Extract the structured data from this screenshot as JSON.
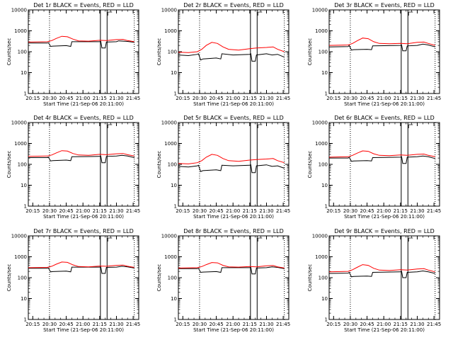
{
  "chart_data": [
    {
      "type": "line",
      "title": "Det 1r BLACK = Events, RED = LLD",
      "xlabel": "Start Time (21-Sep-06 20:11:00)",
      "ylabel": "Counts/sec",
      "yscale": "log",
      "ylim": [
        1,
        10000
      ],
      "xlim": [
        "20:11",
        "21:50"
      ],
      "xticks": [
        "20:15",
        "20:30",
        "20:45",
        "21:00",
        "21:15",
        "21:30",
        "21:45"
      ],
      "yticks": [
        "1",
        "10",
        "100",
        "1000",
        "10000"
      ],
      "events_level": "low",
      "series": [
        {
          "color": "#000000",
          "x": [
            "20:11",
            "20:28",
            "20:29",
            "20:31",
            "20:33",
            "20:45",
            "20:49",
            "20:50",
            "21:15",
            "21:16",
            "21:17",
            "21:20",
            "21:21",
            "21:30",
            "21:32",
            "21:40",
            "21:46"
          ],
          "values": [
            260,
            260,
            270,
            180,
            185,
            195,
            180,
            300,
            300,
            310,
            150,
            150,
            290,
            300,
            330,
            310,
            280
          ]
        },
        {
          "color": "#ff0000",
          "x": [
            "20:11",
            "20:28",
            "20:32",
            "20:36",
            "20:41",
            "20:46",
            "20:51",
            "20:56",
            "21:05",
            "21:15",
            "21:21",
            "21:30",
            "21:36",
            "21:40",
            "21:46"
          ],
          "values": [
            290,
            300,
            340,
            430,
            550,
            520,
            400,
            330,
            320,
            350,
            340,
            380,
            390,
            340,
            300
          ]
        }
      ]
    },
    {
      "type": "line",
      "title": "Det 2r BLACK = Events, RED = LLD",
      "xlabel": "Start Time (21-Sep-06 20:11:00)",
      "ylabel": "Counts/sec",
      "yscale": "log",
      "ylim": [
        1,
        10000
      ],
      "xlim": [
        "20:11",
        "21:50"
      ],
      "xticks": [
        "20:15",
        "20:30",
        "20:45",
        "21:00",
        "21:15",
        "21:30",
        "21:45"
      ],
      "yticks": [
        "1",
        "10",
        "100",
        "1000",
        "10000"
      ],
      "events_level": "mid",
      "series": [
        {
          "color": "#000000",
          "x": [
            "20:11",
            "20:20",
            "20:28",
            "20:29",
            "20:31",
            "20:33",
            "20:45",
            "20:49",
            "20:50",
            "21:00",
            "21:15",
            "21:16",
            "21:17",
            "21:20",
            "21:21",
            "21:30",
            "21:35",
            "21:40",
            "21:46"
          ],
          "values": [
            70,
            65,
            75,
            80,
            40,
            45,
            50,
            45,
            80,
            70,
            75,
            80,
            35,
            35,
            70,
            80,
            70,
            75,
            55
          ]
        },
        {
          "color": "#ff0000",
          "x": [
            "20:11",
            "20:20",
            "20:28",
            "20:32",
            "20:36",
            "20:41",
            "20:46",
            "20:51",
            "20:56",
            "21:05",
            "21:15",
            "21:21",
            "21:30",
            "21:36",
            "21:40",
            "21:46"
          ],
          "values": [
            95,
            90,
            100,
            130,
            200,
            280,
            250,
            170,
            130,
            120,
            140,
            150,
            160,
            170,
            130,
            100
          ]
        }
      ]
    },
    {
      "type": "line",
      "title": "Det 3r BLACK = Events, RED = LLD",
      "xlabel": "Start Time (21-Sep-06 20:11:00)",
      "ylabel": "Counts/sec",
      "yscale": "log",
      "ylim": [
        1,
        10000
      ],
      "xlim": [
        "20:11",
        "21:50"
      ],
      "xticks": [
        "20:15",
        "20:30",
        "20:45",
        "21:00",
        "21:15",
        "21:30",
        "21:45"
      ],
      "yticks": [
        "1",
        "10",
        "100",
        "1000",
        "10000"
      ],
      "events_level": "high",
      "series": [
        {
          "color": "#000000",
          "x": [
            "20:11",
            "20:28",
            "20:29",
            "20:31",
            "20:33",
            "20:45",
            "20:49",
            "20:50",
            "21:15",
            "21:16",
            "21:17",
            "21:20",
            "21:21",
            "21:30",
            "21:35",
            "21:40",
            "21:46"
          ],
          "values": [
            170,
            175,
            200,
            120,
            125,
            130,
            125,
            190,
            200,
            210,
            110,
            110,
            190,
            200,
            230,
            210,
            170
          ]
        },
        {
          "color": "#ff0000",
          "x": [
            "20:11",
            "20:28",
            "20:32",
            "20:36",
            "20:41",
            "20:46",
            "20:51",
            "20:56",
            "21:05",
            "21:15",
            "21:21",
            "21:30",
            "21:36",
            "21:40",
            "21:46"
          ],
          "values": [
            200,
            210,
            250,
            330,
            450,
            420,
            300,
            250,
            240,
            250,
            240,
            280,
            290,
            250,
            200
          ]
        }
      ]
    },
    {
      "type": "line",
      "title": "Det 4r BLACK = Events, RED = LLD",
      "xlabel": "Start Time (21-Sep-06 20:11:00)",
      "ylabel": "Counts/sec",
      "yscale": "log",
      "ylim": [
        1,
        10000
      ],
      "xlim": [
        "20:11",
        "21:50"
      ],
      "xticks": [
        "20:15",
        "20:30",
        "20:45",
        "21:00",
        "21:15",
        "21:30",
        "21:45"
      ],
      "yticks": [
        "1",
        "10",
        "100",
        "1000",
        "10000"
      ],
      "events_level": "low",
      "series": [
        {
          "color": "#000000",
          "x": [
            "20:11",
            "20:28",
            "20:29",
            "20:31",
            "20:33",
            "20:45",
            "20:49",
            "20:50",
            "21:15",
            "21:16",
            "21:17",
            "21:20",
            "21:21",
            "21:30",
            "21:35",
            "21:40",
            "21:46"
          ],
          "values": [
            210,
            210,
            220,
            145,
            150,
            160,
            150,
            230,
            240,
            250,
            120,
            120,
            240,
            250,
            270,
            250,
            210
          ]
        },
        {
          "color": "#ff0000",
          "x": [
            "20:11",
            "20:28",
            "20:32",
            "20:36",
            "20:41",
            "20:46",
            "20:51",
            "20:56",
            "21:05",
            "21:15",
            "21:21",
            "21:30",
            "21:36",
            "21:40",
            "21:46"
          ],
          "values": [
            240,
            250,
            280,
            350,
            450,
            430,
            330,
            280,
            270,
            300,
            290,
            320,
            330,
            290,
            250
          ]
        }
      ]
    },
    {
      "type": "line",
      "title": "Det 5r BLACK = Events, RED = LLD",
      "xlabel": "Start Time (21-Sep-06 20:11:00)",
      "ylabel": "Counts/sec",
      "yscale": "log",
      "ylim": [
        1,
        10000
      ],
      "xlim": [
        "20:11",
        "21:50"
      ],
      "xticks": [
        "20:15",
        "20:30",
        "20:45",
        "21:00",
        "21:15",
        "21:30",
        "21:45"
      ],
      "yticks": [
        "1",
        "10",
        "100",
        "1000",
        "10000"
      ],
      "events_level": "mid",
      "series": [
        {
          "color": "#000000",
          "x": [
            "20:11",
            "20:20",
            "20:28",
            "20:29",
            "20:31",
            "20:33",
            "20:45",
            "20:49",
            "20:50",
            "21:00",
            "21:15",
            "21:16",
            "21:17",
            "21:20",
            "21:21",
            "21:30",
            "21:35",
            "21:40",
            "21:46"
          ],
          "values": [
            80,
            75,
            85,
            90,
            45,
            50,
            55,
            50,
            90,
            85,
            90,
            95,
            40,
            40,
            85,
            95,
            80,
            85,
            65
          ]
        },
        {
          "color": "#ff0000",
          "x": [
            "20:11",
            "20:20",
            "20:28",
            "20:32",
            "20:36",
            "20:41",
            "20:46",
            "20:51",
            "20:56",
            "21:05",
            "21:15",
            "21:21",
            "21:30",
            "21:36",
            "21:40",
            "21:46"
          ],
          "values": [
            110,
            105,
            120,
            150,
            220,
            300,
            270,
            190,
            150,
            140,
            160,
            170,
            180,
            190,
            150,
            120
          ]
        }
      ]
    },
    {
      "type": "line",
      "title": "Det 6r BLACK = Events, RED = LLD",
      "xlabel": "Start Time (21-Sep-06 20:11:00)",
      "ylabel": "Counts/sec",
      "yscale": "log",
      "ylim": [
        1,
        10000
      ],
      "xlim": [
        "20:11",
        "21:50"
      ],
      "xticks": [
        "20:15",
        "20:30",
        "20:45",
        "21:00",
        "21:15",
        "21:30",
        "21:45"
      ],
      "yticks": [
        "1",
        "10",
        "100",
        "1000",
        "10000"
      ],
      "events_level": "high",
      "series": [
        {
          "color": "#000000",
          "x": [
            "20:11",
            "20:28",
            "20:29",
            "20:31",
            "20:33",
            "20:45",
            "20:49",
            "20:50",
            "21:15",
            "21:16",
            "21:17",
            "21:20",
            "21:21",
            "21:30",
            "21:35",
            "21:40",
            "21:46"
          ],
          "values": [
            200,
            200,
            215,
            140,
            145,
            150,
            145,
            210,
            220,
            230,
            110,
            110,
            220,
            230,
            250,
            230,
            190
          ]
        },
        {
          "color": "#ff0000",
          "x": [
            "20:11",
            "20:28",
            "20:32",
            "20:36",
            "20:41",
            "20:46",
            "20:51",
            "20:56",
            "21:05",
            "21:15",
            "21:21",
            "21:30",
            "21:36",
            "21:40",
            "21:46"
          ],
          "values": [
            220,
            230,
            270,
            340,
            440,
            420,
            320,
            270,
            260,
            280,
            270,
            300,
            310,
            270,
            230
          ]
        }
      ]
    },
    {
      "type": "line",
      "title": "Det 7r BLACK = Events, RED = LLD",
      "xlabel": "Start Time (21-Sep-06 20:11:00)",
      "ylabel": "Counts/sec",
      "yscale": "log",
      "ylim": [
        1,
        10000
      ],
      "xlim": [
        "20:11",
        "21:50"
      ],
      "xticks": [
        "20:15",
        "20:30",
        "20:45",
        "21:00",
        "21:15",
        "21:30",
        "21:45"
      ],
      "yticks": [
        "1",
        "10",
        "100",
        "1000",
        "10000"
      ],
      "events_level": "low",
      "series": [
        {
          "color": "#000000",
          "x": [
            "20:11",
            "20:28",
            "20:29",
            "20:31",
            "20:33",
            "20:45",
            "20:49",
            "20:50",
            "21:15",
            "21:16",
            "21:17",
            "21:20",
            "21:21",
            "21:30",
            "21:35",
            "21:40",
            "21:46"
          ],
          "values": [
            280,
            280,
            290,
            190,
            195,
            205,
            190,
            320,
            320,
            330,
            160,
            160,
            310,
            320,
            350,
            330,
            290
          ]
        },
        {
          "color": "#ff0000",
          "x": [
            "20:11",
            "20:28",
            "20:32",
            "20:36",
            "20:41",
            "20:46",
            "20:51",
            "20:56",
            "21:05",
            "21:15",
            "21:21",
            "21:30",
            "21:36",
            "21:40",
            "21:46"
          ],
          "values": [
            300,
            310,
            350,
            440,
            560,
            540,
            410,
            340,
            330,
            360,
            350,
            390,
            400,
            350,
            310
          ]
        }
      ]
    },
    {
      "type": "line",
      "title": "Det 8r BLACK = Events, RED = LLD",
      "xlabel": "Start Time (21-Sep-06 20:11:00)",
      "ylabel": "Counts/sec",
      "yscale": "log",
      "ylim": [
        1,
        10000
      ],
      "xlim": [
        "20:11",
        "21:50"
      ],
      "xticks": [
        "20:15",
        "20:30",
        "20:45",
        "21:00",
        "21:15",
        "21:30",
        "21:45"
      ],
      "yticks": [
        "1",
        "10",
        "100",
        "1000",
        "10000"
      ],
      "events_level": "mid",
      "series": [
        {
          "color": "#000000",
          "x": [
            "20:11",
            "20:28",
            "20:29",
            "20:31",
            "20:33",
            "20:45",
            "20:49",
            "20:50",
            "21:15",
            "21:16",
            "21:17",
            "21:20",
            "21:21",
            "21:30",
            "21:35",
            "21:40",
            "21:46"
          ],
          "values": [
            270,
            270,
            280,
            180,
            185,
            195,
            180,
            300,
            300,
            310,
            150,
            150,
            290,
            300,
            330,
            310,
            270
          ]
        },
        {
          "color": "#ff0000",
          "x": [
            "20:11",
            "20:28",
            "20:32",
            "20:36",
            "20:41",
            "20:46",
            "20:51",
            "20:56",
            "21:05",
            "21:15",
            "21:21",
            "21:30",
            "21:36",
            "21:40",
            "21:46"
          ],
          "values": [
            290,
            300,
            340,
            420,
            530,
            510,
            390,
            330,
            320,
            340,
            330,
            370,
            380,
            330,
            290
          ]
        }
      ]
    },
    {
      "type": "line",
      "title": "Det 9r BLACK = Events, RED = LLD",
      "xlabel": "Start Time (21-Sep-06 20:11:00)",
      "ylabel": "Counts/sec",
      "yscale": "log",
      "ylim": [
        1,
        10000
      ],
      "xlim": [
        "20:11",
        "21:50"
      ],
      "xticks": [
        "20:15",
        "20:30",
        "20:45",
        "21:00",
        "21:15",
        "21:30",
        "21:45"
      ],
      "yticks": [
        "1",
        "10",
        "100",
        "1000",
        "10000"
      ],
      "events_level": "high",
      "series": [
        {
          "color": "#000000",
          "x": [
            "20:11",
            "20:28",
            "20:29",
            "20:31",
            "20:33",
            "20:45",
            "20:49",
            "20:50",
            "21:15",
            "21:16",
            "21:17",
            "21:20",
            "21:21",
            "21:30",
            "21:35",
            "21:40",
            "21:46"
          ],
          "values": [
            160,
            165,
            180,
            110,
            115,
            120,
            115,
            180,
            190,
            200,
            100,
            100,
            180,
            190,
            210,
            190,
            160
          ]
        },
        {
          "color": "#ff0000",
          "x": [
            "20:11",
            "20:28",
            "20:32",
            "20:36",
            "20:41",
            "20:46",
            "20:51",
            "20:56",
            "21:05",
            "21:15",
            "21:21",
            "21:30",
            "21:36",
            "21:40",
            "21:46"
          ],
          "values": [
            190,
            200,
            240,
            310,
            420,
            390,
            280,
            230,
            220,
            240,
            230,
            260,
            270,
            230,
            190
          ]
        }
      ]
    }
  ]
}
